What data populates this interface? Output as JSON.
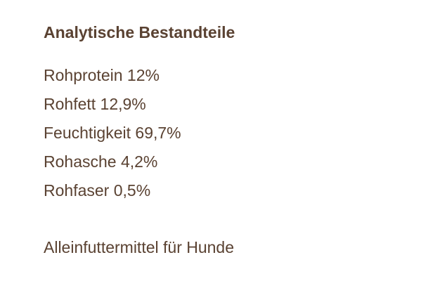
{
  "section": {
    "title": "Analytische Bestandteile",
    "items": [
      {
        "label": "Rohprotein 12%"
      },
      {
        "label": "Rohfett 12,9%"
      },
      {
        "label": "Feuchtigkeit 69,7%"
      },
      {
        "label": "Rohasche 4,2%"
      },
      {
        "label": "Rohfaser 0,5%"
      }
    ],
    "note": "Alleinfuttermittel für Hunde"
  },
  "colors": {
    "text": "#5a4232",
    "background": "#ffffff"
  }
}
